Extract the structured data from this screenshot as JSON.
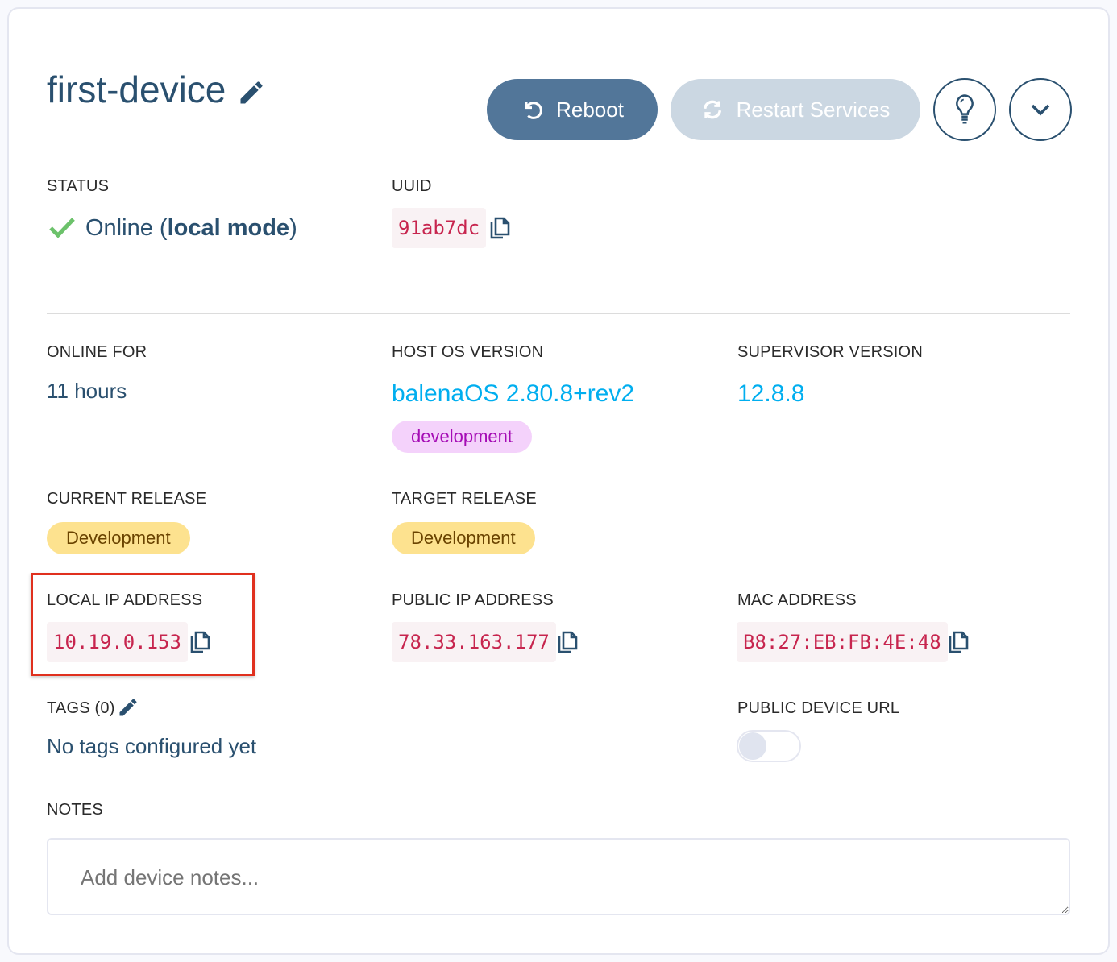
{
  "header": {
    "title": "first-device",
    "reboot_label": "Reboot",
    "restart_label": "Restart Services"
  },
  "status": {
    "label": "STATUS",
    "value": "Online",
    "mode_open": "(",
    "mode": "local mode",
    "mode_close": ")"
  },
  "uuid": {
    "label": "UUID",
    "value": "91ab7dc"
  },
  "online_for": {
    "label": "ONLINE FOR",
    "value": "11 hours"
  },
  "host_os": {
    "label": "HOST OS VERSION",
    "value": "balenaOS 2.80.8+rev2",
    "badge": "development"
  },
  "supervisor": {
    "label": "SUPERVISOR VERSION",
    "value": "12.8.8"
  },
  "current_release": {
    "label": "CURRENT RELEASE",
    "value": "Development"
  },
  "target_release": {
    "label": "TARGET RELEASE",
    "value": "Development"
  },
  "local_ip": {
    "label": "LOCAL IP ADDRESS",
    "value": "10.19.0.153"
  },
  "public_ip": {
    "label": "PUBLIC IP ADDRESS",
    "value": "78.33.163.177"
  },
  "mac": {
    "label": "MAC ADDRESS",
    "value": "B8:27:EB:FB:4E:48"
  },
  "tags": {
    "label": "TAGS (0)",
    "empty": "No tags configured yet"
  },
  "public_url": {
    "label": "PUBLIC DEVICE URL",
    "enabled": false
  },
  "notes": {
    "label": "NOTES",
    "placeholder": "Add device notes..."
  },
  "colors": {
    "primary": "#527699",
    "title": "#2a506f",
    "link": "#00aeef",
    "highlight": "#e0301e"
  }
}
